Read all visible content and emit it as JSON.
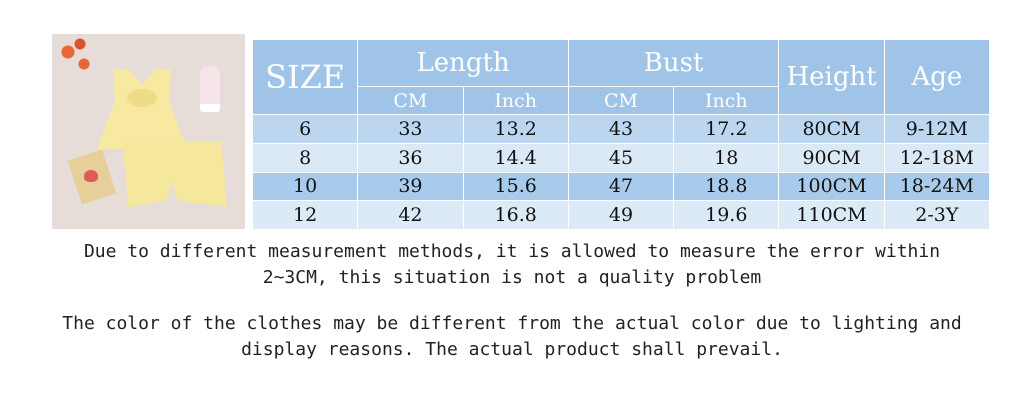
{
  "table": {
    "headers": {
      "size": "SIZE",
      "length": "Length",
      "bust": "Bust",
      "height": "Height",
      "age": "Age",
      "cm": "CM",
      "inch": "Inch"
    },
    "rows": [
      [
        "6",
        "33",
        "13.2",
        "43",
        "17.2",
        "80CM",
        "9-12M"
      ],
      [
        "8",
        "36",
        "14.4",
        "45",
        "18",
        "90CM",
        "12-18M"
      ],
      [
        "10",
        "39",
        "15.6",
        "47",
        "18.8",
        "100CM",
        "18-24M"
      ],
      [
        "12",
        "42",
        "16.8",
        "49",
        "19.6",
        "110CM",
        "2-3Y"
      ]
    ]
  },
  "notes": {
    "line1": "Due to different measurement methods, it is allowed to measure the error within",
    "line2": "2~3CM, this situation is not a quality problem",
    "line3": "The color of the clothes may be different from the actual color due to lighting and",
    "line4": "display reasons. The actual product shall prevail."
  },
  "colors": {
    "header": "#9fc4e8",
    "row_dark": "#a9cbeb",
    "row_light": "#dbe8f6",
    "product": "#f7eaa0"
  }
}
